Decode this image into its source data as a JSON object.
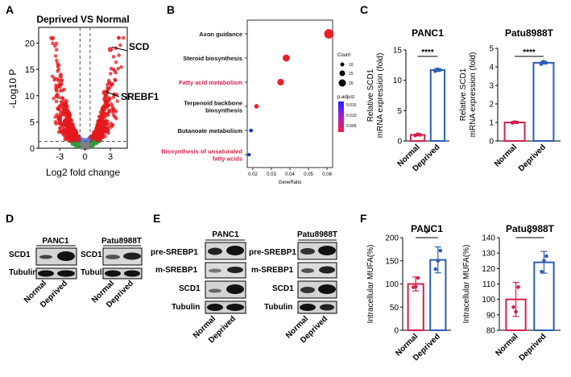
{
  "panel_labels": [
    "A",
    "B",
    "C",
    "D",
    "E",
    "F"
  ],
  "colors": {
    "red": "#e41a1c",
    "blue": "#2c5eb4",
    "crimson": "#d6204c",
    "volcano_blue": "#5b7fe0",
    "volcano_green": "#2e9e3a",
    "grey": "#808080"
  },
  "chart_data": [
    {
      "id": "volcano",
      "type": "scatter",
      "title": "Deprived VS Normal",
      "xlabel": "Log2 fold change",
      "ylabel": "-Log10 P",
      "xlim": [
        -5.5,
        5
      ],
      "ylim": [
        0,
        23
      ],
      "xticks": [
        "-3",
        "0",
        "3"
      ],
      "yticks": [
        "0",
        "5",
        "10",
        "15",
        "20"
      ],
      "thresholds": {
        "fc": 0.6,
        "p": 1.3
      },
      "annotations": [
        {
          "label": "SCD",
          "x": 3.0,
          "y": 18.8
        },
        {
          "label": "SREBF1",
          "x": 2.3,
          "y": 10.6
        }
      ]
    },
    {
      "id": "kegg",
      "type": "scatter",
      "xlabel": "GeneRatio",
      "xlim": [
        0.017,
        0.063
      ],
      "xticks": [
        "0.02",
        "0.03",
        "0.04",
        "0.05",
        "0.06"
      ],
      "terms": [
        {
          "name": "Axon guidance",
          "ratio": 0.061,
          "count": 20,
          "padj": 0.001,
          "highlight": false
        },
        {
          "name": "Steroid biosynthesis",
          "ratio": 0.038,
          "count": 13,
          "padj": 0.002,
          "highlight": false
        },
        {
          "name": "Fatty acid metabolism",
          "ratio": 0.035,
          "count": 12,
          "padj": 0.002,
          "highlight": true
        },
        {
          "name": "Terpenoid backbone biosynthesis",
          "ratio": 0.022,
          "count": 6,
          "padj": 0.004,
          "highlight": false
        },
        {
          "name": "Butanoate metabolism",
          "ratio": 0.019,
          "count": 4,
          "padj": 0.018,
          "highlight": false
        },
        {
          "name": "Biosynthesis of unsaturated fatty acids",
          "ratio": 0.018,
          "count": 3,
          "padj": 0.018,
          "highlight": true
        }
      ],
      "legend": {
        "count_title": "Count",
        "count_labels": [
          "10",
          "15",
          "20"
        ],
        "padj_title": "p.adjust",
        "padj_labels": [
          "0.015",
          "0.010",
          "0.005"
        ]
      }
    },
    {
      "id": "qpcr_panc1",
      "type": "bar",
      "title": "PANC1",
      "ylabel": "Relative SCD1 mRNA expression (fold)",
      "categories": [
        "Normal",
        "Deprived"
      ],
      "values": [
        1.0,
        11.7
      ],
      "errors": [
        0.15,
        0.25
      ],
      "points": [
        [
          0.9,
          1.0,
          1.1
        ],
        [
          11.5,
          11.7,
          11.8
        ]
      ],
      "ylim": [
        0,
        15
      ],
      "yticks": [
        "0",
        "5",
        "10",
        "15"
      ],
      "significance": "****"
    },
    {
      "id": "qpcr_patu",
      "type": "bar",
      "title": "Patu8988T",
      "ylabel": "Relative SCD1 mRNA expression (fold)",
      "categories": [
        "Normal",
        "Deprived"
      ],
      "values": [
        1.0,
        4.22
      ],
      "errors": [
        0.05,
        0.07
      ],
      "points": [
        [
          0.98,
          1.0,
          1.02
        ],
        [
          4.15,
          4.22,
          4.28
        ]
      ],
      "ylim": [
        0,
        5
      ],
      "yticks": [
        "0",
        "1",
        "2",
        "3",
        "4",
        "5"
      ],
      "significance": "****"
    },
    {
      "id": "mufa_panc1",
      "type": "bar",
      "title": "PANC1",
      "ylabel": "Intracellular MUFA(%)",
      "categories": [
        "Normal",
        "Deprived"
      ],
      "values": [
        100,
        152
      ],
      "errors": [
        15,
        28
      ],
      "points": [
        [
          93,
          113,
          94
        ],
        [
          132,
          172,
          150
        ]
      ],
      "ylim": [
        0,
        200
      ],
      "yticks": [
        "0",
        "50",
        "100",
        "150",
        "200"
      ],
      "significance": "*"
    },
    {
      "id": "mufa_patu",
      "type": "bar",
      "title": "Patu8988T",
      "ylabel": "Intracellular MUFA(%)",
      "categories": [
        "Normal",
        "Deprived"
      ],
      "values": [
        100,
        124
      ],
      "errors": [
        11,
        7
      ],
      "points": [
        [
          95,
          108,
          92
        ],
        [
          118,
          128,
          125
        ]
      ],
      "ylim": [
        80,
        140
      ],
      "yticks": [
        "80",
        "90",
        "100",
        "110",
        "120",
        "130",
        "140"
      ],
      "significance": "*"
    }
  ],
  "blots": {
    "D": {
      "groups": [
        {
          "title": "PANC1"
        },
        {
          "title": "Patu8988T"
        }
      ],
      "rows": [
        "SCD1",
        "Tubulin"
      ],
      "lanes": [
        "Normal",
        "Deprived"
      ]
    },
    "E": {
      "groups": [
        {
          "title": "PANC1"
        },
        {
          "title": "Patu8988T"
        }
      ],
      "rows": [
        "pre-SREBP1",
        "m-SREBP1",
        "SCD1",
        "Tubulin"
      ],
      "lanes": [
        "Normal",
        "Deprived"
      ]
    }
  }
}
